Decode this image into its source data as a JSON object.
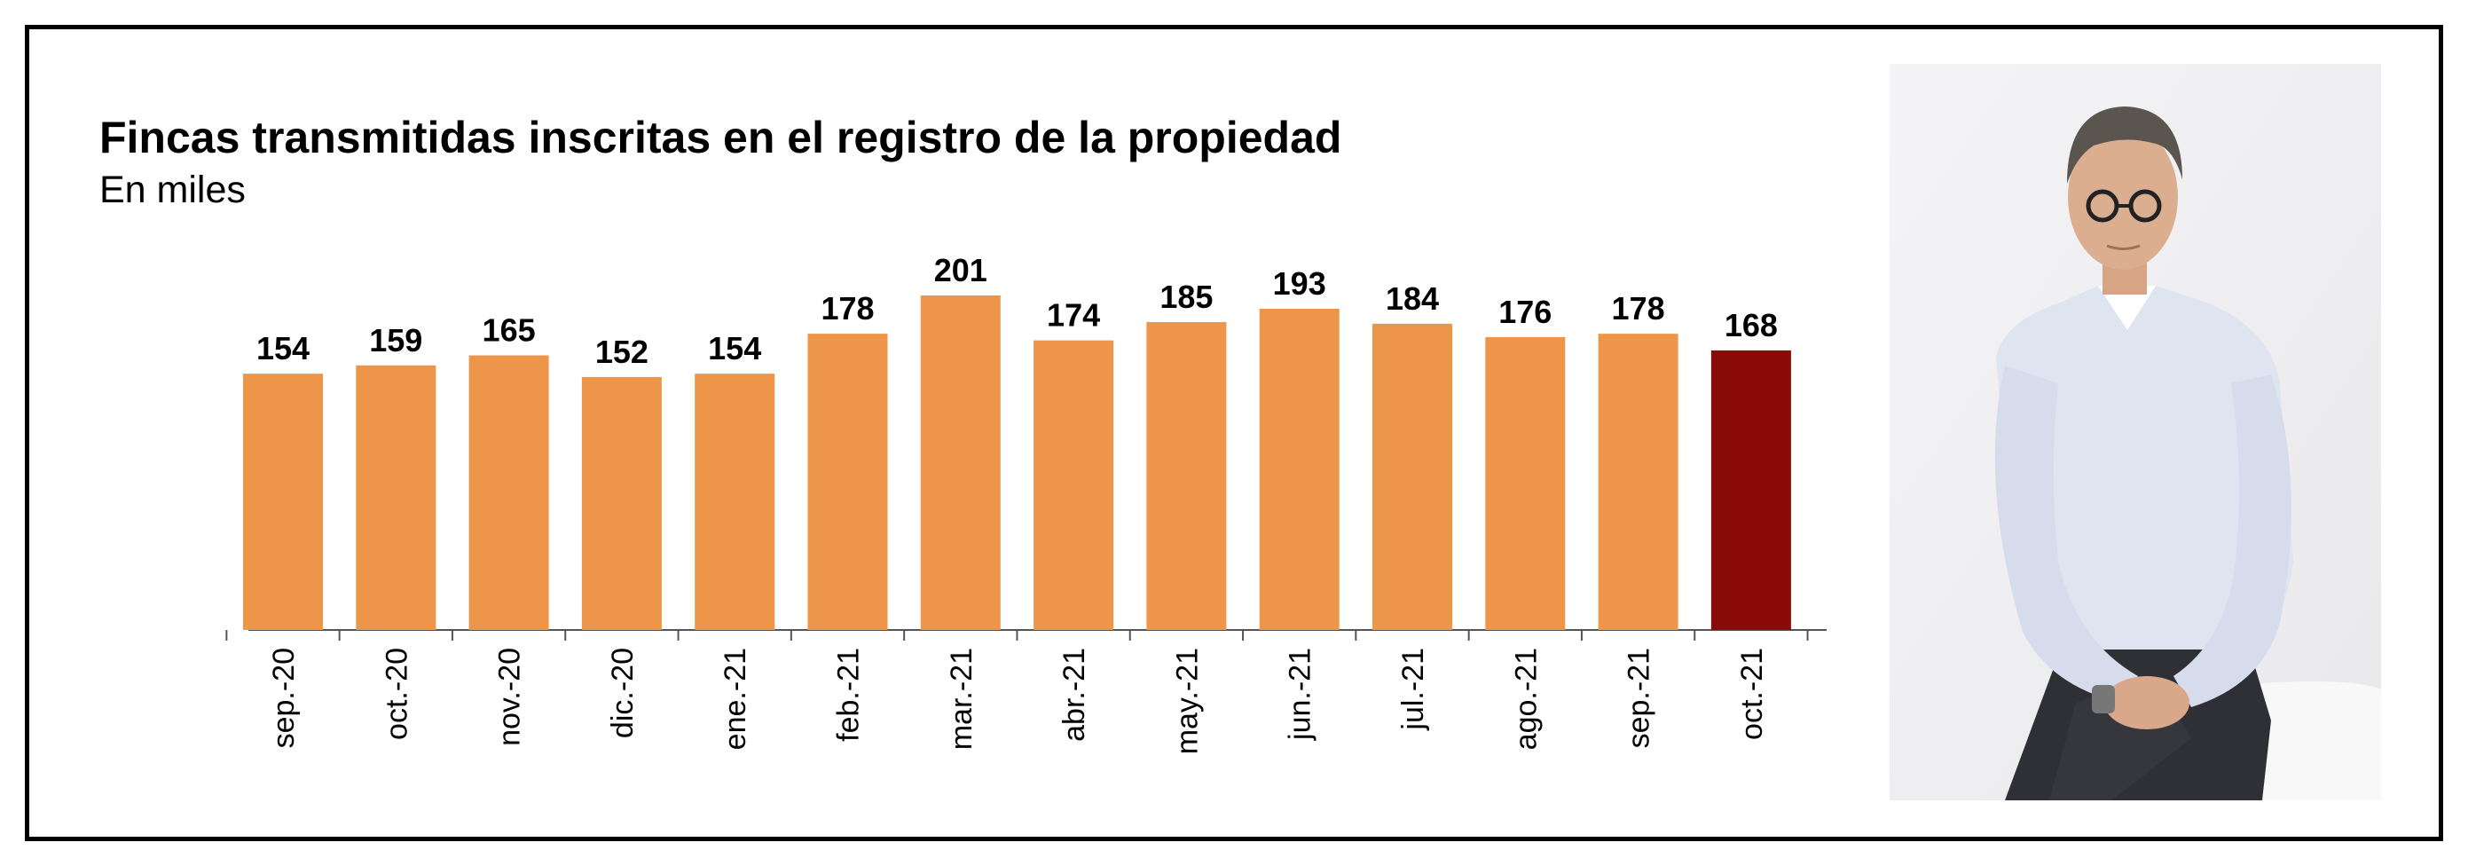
{
  "chart_data": {
    "type": "bar",
    "title": "Fincas transmitidas inscritas en el registro de la propiedad",
    "subtitle": "En miles",
    "categories": [
      "sep.-20",
      "oct.-20",
      "nov.-20",
      "dic.-20",
      "ene.-21",
      "feb.-21",
      "mar.-21",
      "abr.-21",
      "may.-21",
      "jun.-21",
      "jul.-21",
      "ago.-21",
      "sep.-21",
      "oct.-21"
    ],
    "values": [
      154,
      159,
      165,
      152,
      154,
      178,
      201,
      174,
      185,
      193,
      184,
      176,
      178,
      168
    ],
    "ylim": [
      0,
      201
    ],
    "grid": false,
    "legend": "none",
    "data_labels": true,
    "colors": {
      "bar": "#ED9549",
      "highlight": "#8B0B0B",
      "highlight_index": 13,
      "axis": "#555555"
    }
  },
  "photo": {
    "icon": "person-photo"
  }
}
